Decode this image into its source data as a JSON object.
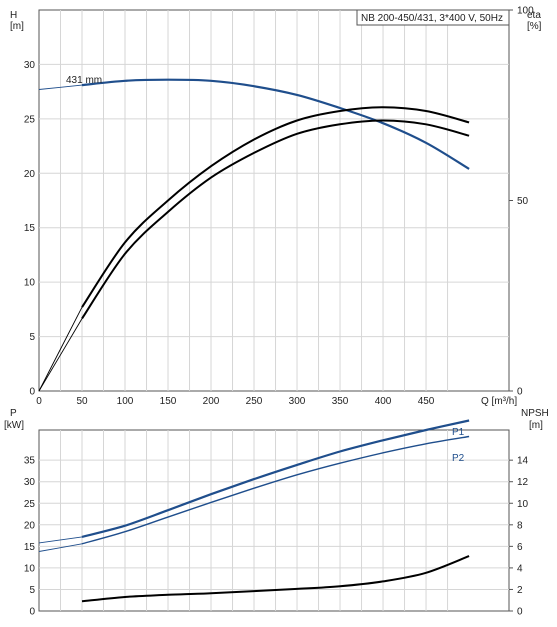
{
  "chart_data": [
    {
      "type": "line",
      "title": "NB 200-450/431, 3*400 V, 50Hz",
      "xlabel": "Q [m³/h]",
      "xlim": [
        0,
        500
      ],
      "x_ticks": [
        "0",
        "50",
        "100",
        "150",
        "200",
        "250",
        "300",
        "350",
        "400",
        "450"
      ],
      "y_left": {
        "label_top": "H",
        "label_bottom": "[m]",
        "lim": [
          0,
          35
        ],
        "ticks": [
          "0",
          "5",
          "10",
          "15",
          "20",
          "25",
          "30"
        ]
      },
      "y_right": {
        "label_top": "eta",
        "label_bottom": "[%]",
        "lim": [
          0,
          100
        ],
        "ticks": [
          "0",
          "50",
          "100"
        ]
      },
      "annotations": [
        "431 mm"
      ],
      "grid": true,
      "series": [
        {
          "name": "431 mm",
          "axis": "left",
          "color": "#1f4e8c",
          "x": [
            0,
            50,
            100,
            150,
            200,
            250,
            300,
            350,
            400,
            450,
            500
          ],
          "y": [
            27.7,
            28.1,
            28.5,
            28.6,
            28.5,
            28.0,
            27.2,
            26.0,
            24.6,
            22.8,
            20.4
          ],
          "extrapolated_below": 50
        },
        {
          "axis": "right",
          "color": "#000000",
          "x": [
            0,
            50,
            100,
            150,
            200,
            250,
            300,
            350,
            400,
            450,
            500
          ],
          "y": [
            0,
            22,
            39,
            50,
            59,
            66,
            71,
            73.5,
            74.5,
            73.5,
            70.5
          ],
          "extrapolated_below": 50
        },
        {
          "axis": "right",
          "color": "#000000",
          "x": [
            0,
            50,
            100,
            150,
            200,
            250,
            300,
            350,
            400,
            450,
            500
          ],
          "y": [
            0,
            19,
            36,
            47,
            56,
            62.5,
            67.5,
            70,
            71,
            70,
            67
          ],
          "extrapolated_below": 50
        }
      ]
    },
    {
      "type": "line",
      "xlim": [
        0,
        500
      ],
      "y_left": {
        "label_top": "P",
        "label_bottom": "[kW]",
        "lim": [
          0,
          42
        ],
        "ticks": [
          "0",
          "5",
          "10",
          "15",
          "20",
          "25",
          "30",
          "35"
        ]
      },
      "y_right": {
        "label_top": "NPSH",
        "label_bottom": "[m]",
        "lim": [
          0,
          16.8
        ],
        "ticks": [
          "0",
          "2",
          "4",
          "6",
          "8",
          "10",
          "12",
          "14"
        ]
      },
      "grid": true,
      "series": [
        {
          "name": "P1",
          "axis": "left",
          "color": "#1f4e8c",
          "x": [
            0,
            50,
            100,
            150,
            200,
            250,
            300,
            350,
            400,
            450,
            500
          ],
          "y": [
            15.8,
            17.2,
            19.8,
            23.4,
            27.1,
            30.6,
            33.9,
            37.0,
            39.6,
            42.0,
            44.2
          ],
          "extrapolated_below": 50
        },
        {
          "name": "P2",
          "axis": "left",
          "color": "#1f4e8c",
          "x": [
            0,
            50,
            100,
            150,
            200,
            250,
            300,
            350,
            400,
            450,
            500
          ],
          "y": [
            13.8,
            15.6,
            18.4,
            21.8,
            25.2,
            28.5,
            31.6,
            34.3,
            36.7,
            38.8,
            40.5
          ],
          "extrapolated_below": 50
        },
        {
          "name": "NPSH",
          "axis": "right",
          "color": "#000000",
          "x": [
            50,
            100,
            150,
            200,
            250,
            300,
            350,
            400,
            450,
            500
          ],
          "y": [
            0.9,
            1.3,
            1.5,
            1.65,
            1.85,
            2.05,
            2.3,
            2.75,
            3.55,
            5.1
          ]
        }
      ]
    }
  ]
}
